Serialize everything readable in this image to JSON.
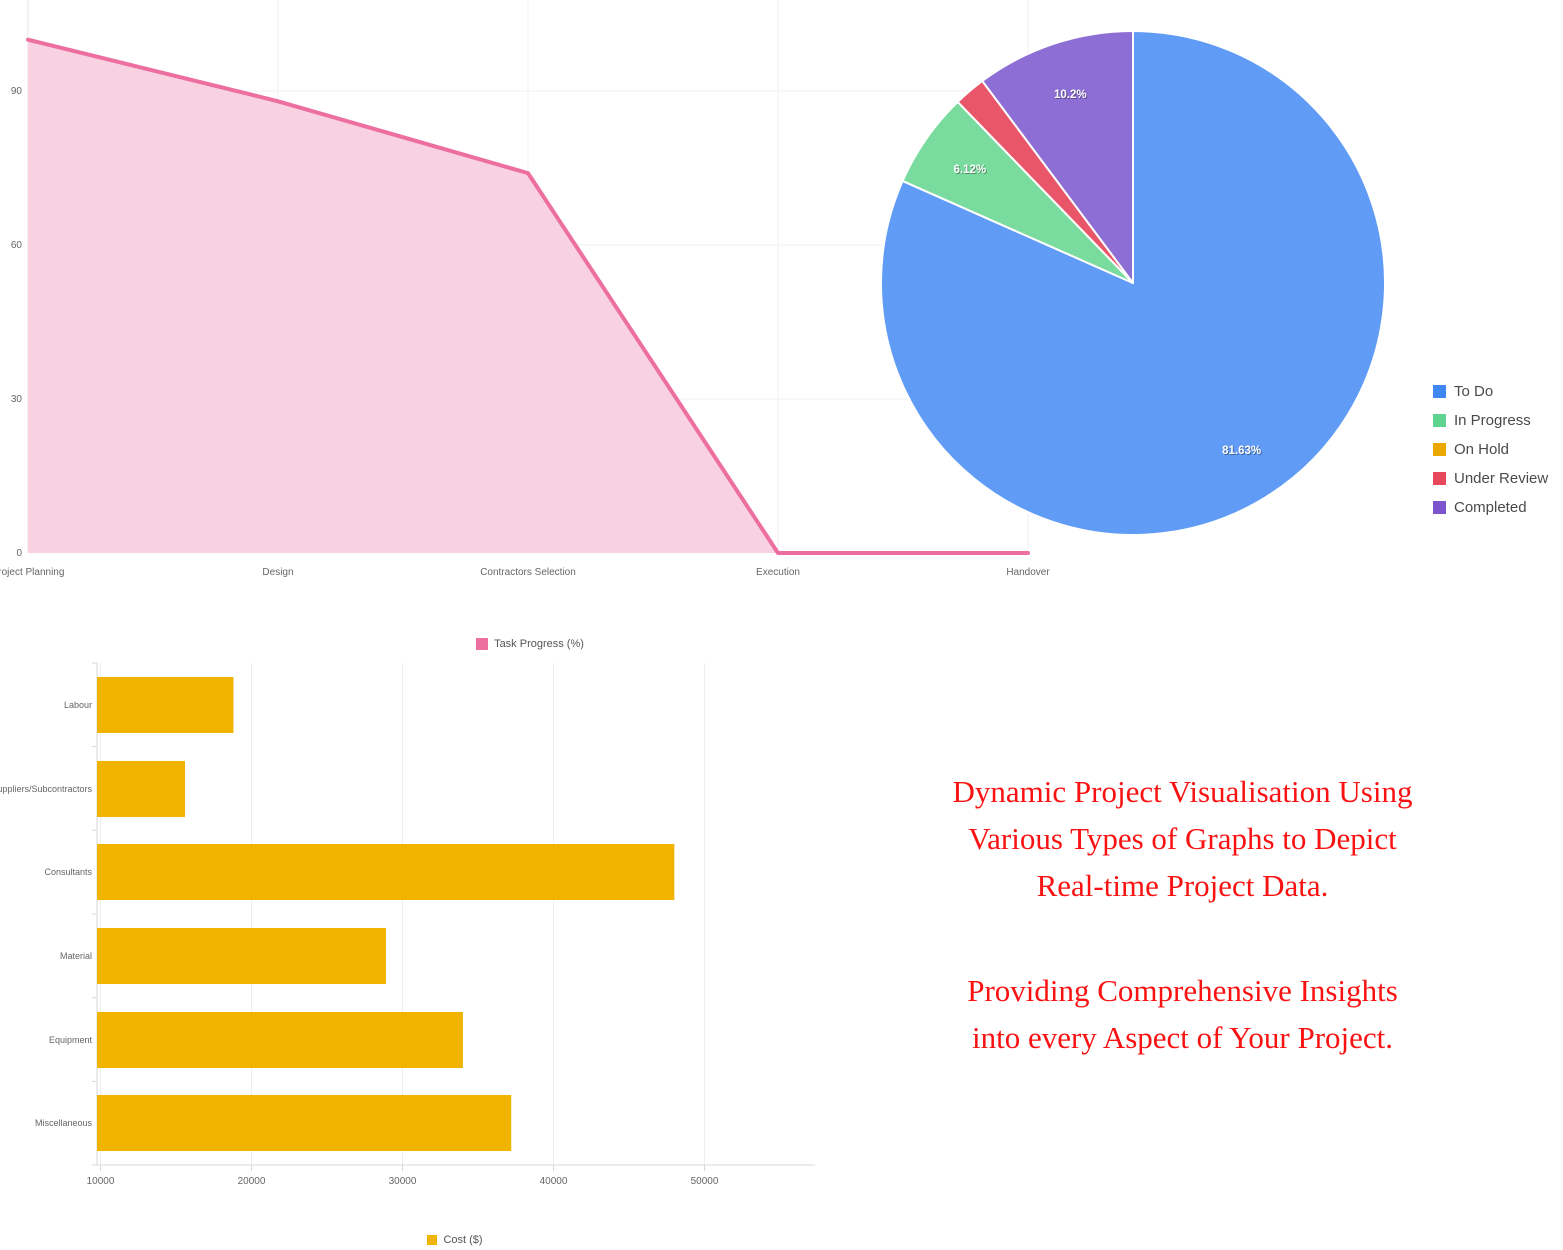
{
  "text_block": {
    "color": "#FA1212",
    "lines1": [
      "Dynamic Project Visualisation Using",
      "Various Types of Graphs  to Depict",
      "Real-time  Project Data."
    ],
    "lines2": [
      "Providing Comprehensive Insights",
      "into every Aspect of Your Project."
    ]
  },
  "chart_data": [
    {
      "id": "task_progress_area",
      "type": "area",
      "title": "",
      "legend": "Task Progress (%)",
      "legend_position": "bottom",
      "categories": [
        "Project Planning",
        "Design",
        "Contractors Selection",
        "Execution",
        "Handover"
      ],
      "values": [
        100,
        88,
        74,
        0,
        0
      ],
      "yticks": [
        0,
        30,
        60,
        90
      ],
      "ylim": [
        0,
        105
      ],
      "grid": true,
      "line_color": "#EC6F9F",
      "fill_color": "#F8D2E0"
    },
    {
      "id": "task_status_pie",
      "type": "pie",
      "legend_position": "right",
      "start_angle": "top",
      "direction": "clockwise",
      "slices": [
        {
          "label": "To Do",
          "pct": 81.63,
          "data_label": "81.63%",
          "color": "#609BF6",
          "legend_color": "#3F87F2"
        },
        {
          "label": "In Progress",
          "pct": 6.12,
          "data_label": "6.12%",
          "color": "#79DB9D",
          "legend_color": "#5FD390"
        },
        {
          "label": "On Hold",
          "pct": 0,
          "data_label": "",
          "color": "#EAA800",
          "legend_color": "#EAA800"
        },
        {
          "label": "Under Review",
          "pct": 2.04,
          "data_label": "",
          "color": "#E9566A",
          "legend_color": "#E8485C"
        },
        {
          "label": "Completed",
          "pct": 10.2,
          "data_label": "10.2%",
          "color": "#8C6ED5",
          "legend_color": "#7C54CE"
        }
      ]
    },
    {
      "id": "cost_bar",
      "type": "bar",
      "orientation": "horizontal",
      "legend": "Cost ($)",
      "legend_position": "bottom",
      "categories": [
        "Labour",
        "Suppliers/Subcontractors",
        "Consultants",
        "Material",
        "Equipment",
        "Miscellaneous"
      ],
      "values": [
        18800,
        15600,
        48000,
        28900,
        34000,
        37200
      ],
      "xticks": [
        10000,
        20000,
        30000,
        40000,
        50000
      ],
      "xlim": [
        9770,
        57600
      ],
      "grid": true,
      "bar_color": "#F0B400"
    }
  ]
}
